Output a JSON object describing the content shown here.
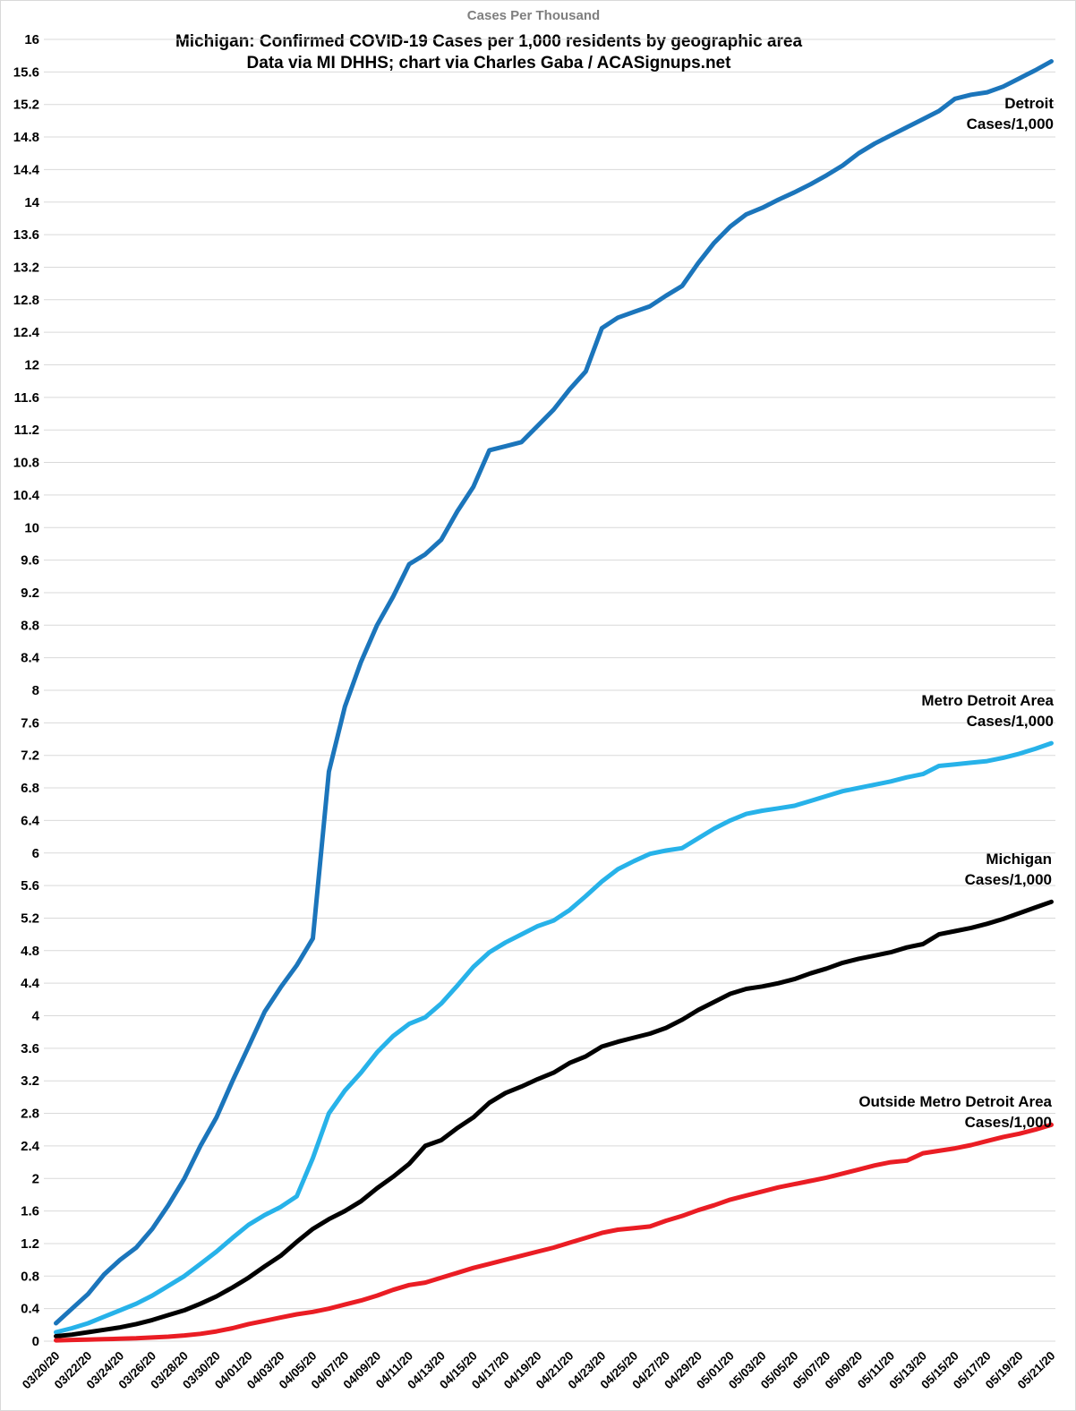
{
  "header": {
    "axis_title": "Cases Per Thousand",
    "title_line1": "Michigan: Confirmed COVID-19 Cases per 1,000 residents by geographic area",
    "title_line2": "Data via MI DHHS; chart via Charles Gaba / ACASignups.net"
  },
  "colors": {
    "gridline": "#d9d9d9",
    "axis_title_text": "#7f7f7f",
    "tick_text": "#000000",
    "background": "#ffffff"
  },
  "chart_data": {
    "type": "line",
    "title": "Michigan: Confirmed COVID-19 Cases per 1,000 residents by geographic area",
    "subtitle": "Data via MI DHHS; chart via Charles Gaba / ACASignups.net",
    "ylabel": "Cases Per Thousand",
    "xlabel": "",
    "ylim": [
      0,
      16
    ],
    "y_tick_step": 0.4,
    "grid": true,
    "legend_position": "inline-right-labels",
    "x_tick_every": 2,
    "x": [
      "03/20/20",
      "03/21/20",
      "03/22/20",
      "03/23/20",
      "03/24/20",
      "03/25/20",
      "03/26/20",
      "03/27/20",
      "03/28/20",
      "03/29/20",
      "03/30/20",
      "03/31/20",
      "04/01/20",
      "04/02/20",
      "04/03/20",
      "04/04/20",
      "04/05/20",
      "04/06/20",
      "04/07/20",
      "04/08/20",
      "04/09/20",
      "04/10/20",
      "04/11/20",
      "04/12/20",
      "04/13/20",
      "04/14/20",
      "04/15/20",
      "04/16/20",
      "04/17/20",
      "04/18/20",
      "04/19/20",
      "04/20/20",
      "04/21/20",
      "04/22/20",
      "04/23/20",
      "04/24/20",
      "04/25/20",
      "04/26/20",
      "04/27/20",
      "04/28/20",
      "04/29/20",
      "04/30/20",
      "05/01/20",
      "05/02/20",
      "05/03/20",
      "05/04/20",
      "05/05/20",
      "05/06/20",
      "05/07/20",
      "05/08/20",
      "05/09/20",
      "05/10/20",
      "05/11/20",
      "05/12/20",
      "05/13/20",
      "05/14/20",
      "05/15/20",
      "05/16/20",
      "05/17/20",
      "05/18/20",
      "05/19/20",
      "05/20/20",
      "05/21/20"
    ],
    "series": [
      {
        "name": "Detroit Cases/1,000",
        "label_line1": "Detroit",
        "label_line2": "Cases/1,000",
        "color": "#1b75bb",
        "values": [
          0.22,
          0.4,
          0.58,
          0.82,
          1.0,
          1.15,
          1.38,
          1.67,
          2.0,
          2.4,
          2.75,
          3.2,
          3.62,
          4.05,
          4.35,
          4.62,
          4.95,
          7.0,
          7.8,
          8.35,
          8.8,
          9.15,
          9.55,
          9.67,
          9.85,
          10.2,
          10.5,
          10.95,
          11.0,
          11.05,
          11.25,
          11.45,
          11.7,
          11.92,
          12.45,
          12.58,
          12.65,
          12.72,
          12.85,
          12.97,
          13.25,
          13.5,
          13.7,
          13.85,
          13.93,
          14.03,
          14.12,
          14.22,
          14.33,
          14.45,
          14.6,
          14.72,
          14.82,
          14.92,
          15.02,
          15.12,
          15.27,
          15.32,
          15.35,
          15.42,
          15.52,
          15.62,
          15.73
        ]
      },
      {
        "name": "Metro Detroit Area Cases/1,000",
        "label_line1": "Metro Detroit Area",
        "label_line2": "Cases/1,000",
        "color": "#27b2e9",
        "values": [
          0.11,
          0.16,
          0.22,
          0.3,
          0.38,
          0.46,
          0.56,
          0.68,
          0.8,
          0.95,
          1.1,
          1.27,
          1.43,
          1.55,
          1.65,
          1.78,
          2.25,
          2.8,
          3.08,
          3.3,
          3.55,
          3.75,
          3.9,
          3.98,
          4.15,
          4.37,
          4.6,
          4.78,
          4.9,
          5.0,
          5.1,
          5.17,
          5.3,
          5.47,
          5.65,
          5.8,
          5.9,
          5.99,
          6.03,
          6.06,
          6.18,
          6.3,
          6.4,
          6.48,
          6.52,
          6.55,
          6.58,
          6.64,
          6.7,
          6.76,
          6.8,
          6.84,
          6.88,
          6.93,
          6.97,
          7.07,
          7.09,
          7.11,
          7.13,
          7.17,
          7.22,
          7.28,
          7.35
        ]
      },
      {
        "name": "Michigan Cases/1,000",
        "label_line1": "Michigan",
        "label_line2": "Cases/1,000",
        "color": "#000000",
        "values": [
          0.06,
          0.08,
          0.11,
          0.14,
          0.17,
          0.21,
          0.26,
          0.32,
          0.38,
          0.46,
          0.55,
          0.66,
          0.78,
          0.92,
          1.05,
          1.22,
          1.38,
          1.5,
          1.6,
          1.72,
          1.88,
          2.02,
          2.18,
          2.4,
          2.47,
          2.62,
          2.75,
          2.93,
          3.05,
          3.13,
          3.22,
          3.3,
          3.42,
          3.5,
          3.62,
          3.68,
          3.73,
          3.78,
          3.85,
          3.95,
          4.07,
          4.17,
          4.27,
          4.33,
          4.36,
          4.4,
          4.45,
          4.52,
          4.58,
          4.65,
          4.7,
          4.74,
          4.78,
          4.84,
          4.88,
          5.0,
          5.04,
          5.08,
          5.13,
          5.19,
          5.26,
          5.33,
          5.4
        ]
      },
      {
        "name": "Outside Metro Detroit Area Cases/1,000",
        "label_line1": "Outside Metro Detroit Area",
        "label_line2": "Cases/1,000",
        "color": "#ea1d24",
        "values": [
          0.01,
          0.015,
          0.02,
          0.025,
          0.03,
          0.035,
          0.045,
          0.055,
          0.07,
          0.09,
          0.12,
          0.16,
          0.21,
          0.25,
          0.29,
          0.33,
          0.36,
          0.4,
          0.45,
          0.5,
          0.56,
          0.63,
          0.69,
          0.72,
          0.78,
          0.84,
          0.9,
          0.95,
          1.0,
          1.05,
          1.1,
          1.15,
          1.21,
          1.27,
          1.33,
          1.37,
          1.39,
          1.41,
          1.48,
          1.54,
          1.61,
          1.67,
          1.74,
          1.79,
          1.84,
          1.89,
          1.93,
          1.97,
          2.01,
          2.06,
          2.11,
          2.16,
          2.2,
          2.22,
          2.31,
          2.34,
          2.37,
          2.41,
          2.46,
          2.51,
          2.55,
          2.6,
          2.66
        ]
      }
    ]
  }
}
